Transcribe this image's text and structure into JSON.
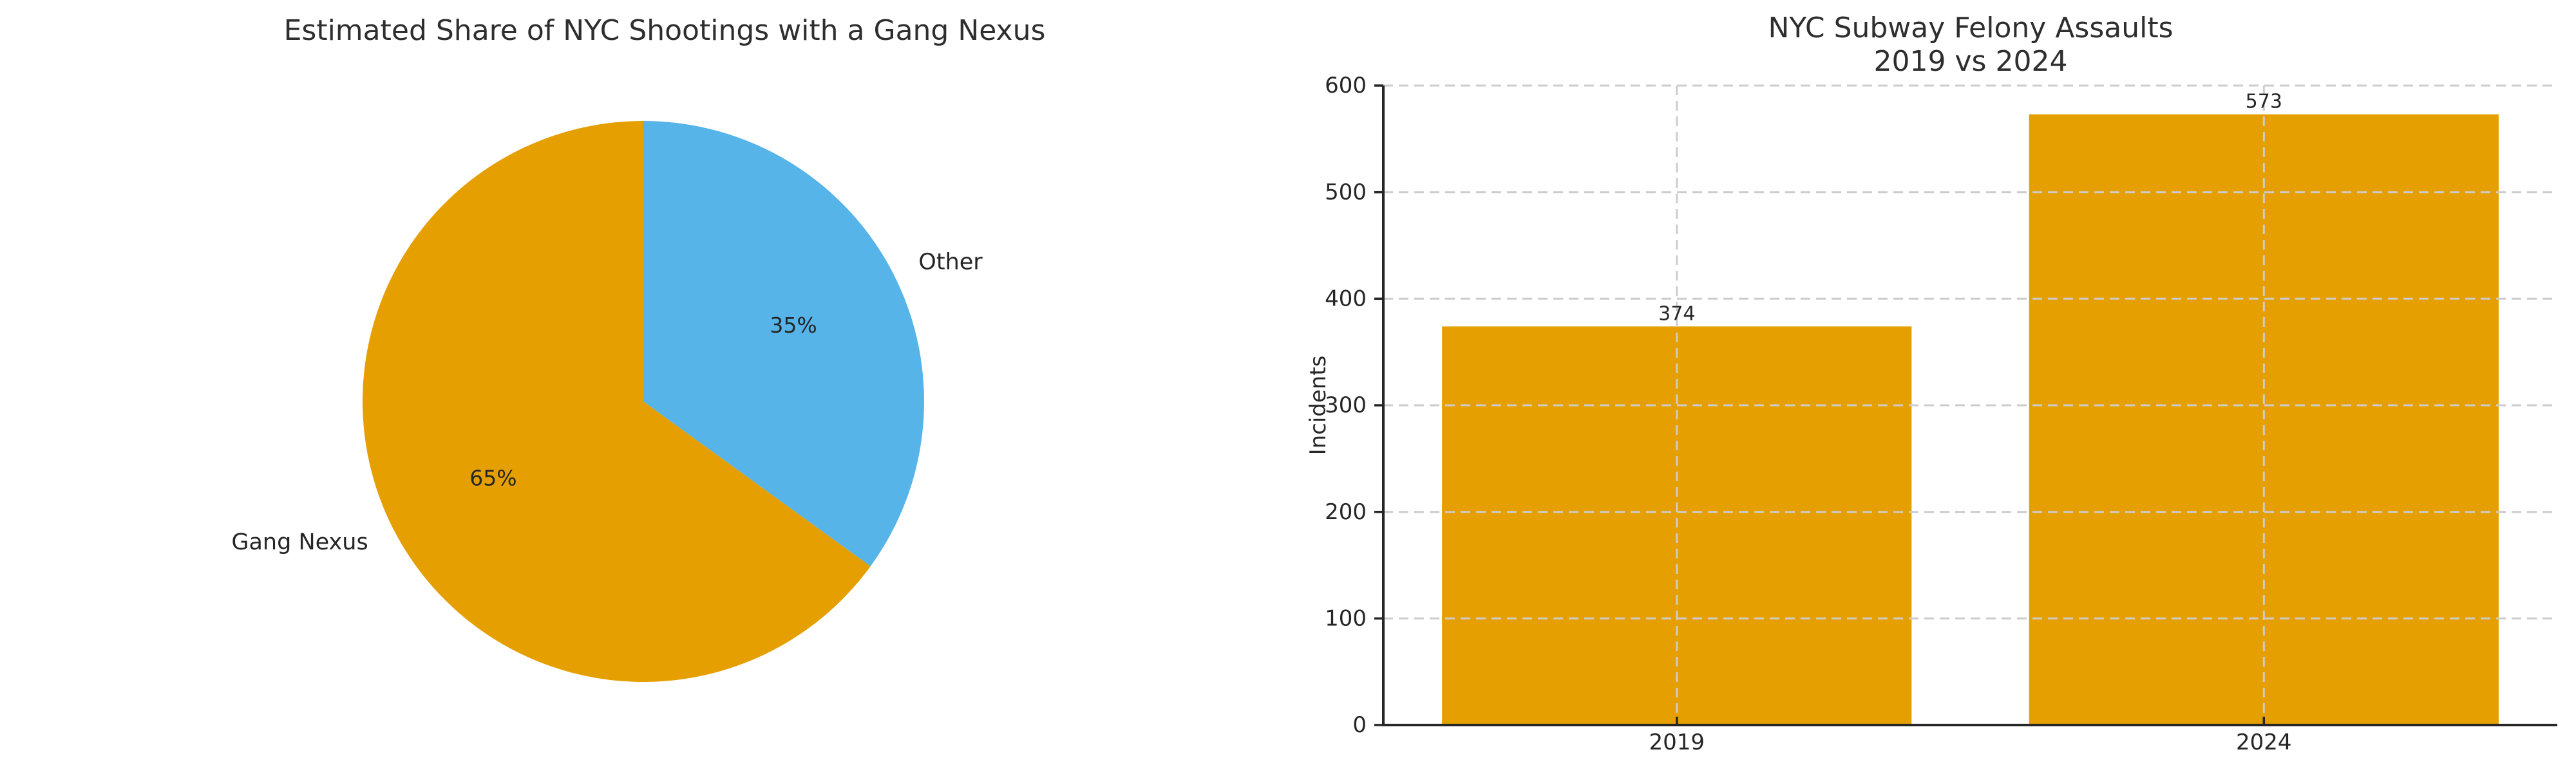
{
  "figure": {
    "background": "#ffffff",
    "text_color": "#262626",
    "title_color": "#2e2e2e"
  },
  "chart_data": [
    {
      "type": "pie",
      "title": "Estimated Share of NYC Shootings with a Gang Nexus",
      "labels": [
        "Gang Nexus",
        "Other"
      ],
      "values": [
        65,
        35
      ],
      "pct_labels": [
        "65%",
        "35%"
      ],
      "colors": [
        "#E69F00",
        "#56B4E9"
      ],
      "start_angle": 90,
      "counterclock": true,
      "legend": "none"
    },
    {
      "type": "bar",
      "title_lines": [
        "NYC Subway Felony Assaults",
        "2019 vs 2024"
      ],
      "categories": [
        "2019",
        "2024"
      ],
      "values": [
        374,
        573
      ],
      "value_labels": [
        "374",
        "573"
      ],
      "bar_color": "#E69F00",
      "ylabel": "Incidents",
      "ylim": [
        0,
        600
      ],
      "yticks": [
        0,
        100,
        200,
        300,
        400,
        500,
        600
      ],
      "grid": true,
      "grid_style": "dashed",
      "grid_color": "#cccccc",
      "axis_color": "#262626",
      "legend": "none"
    }
  ]
}
